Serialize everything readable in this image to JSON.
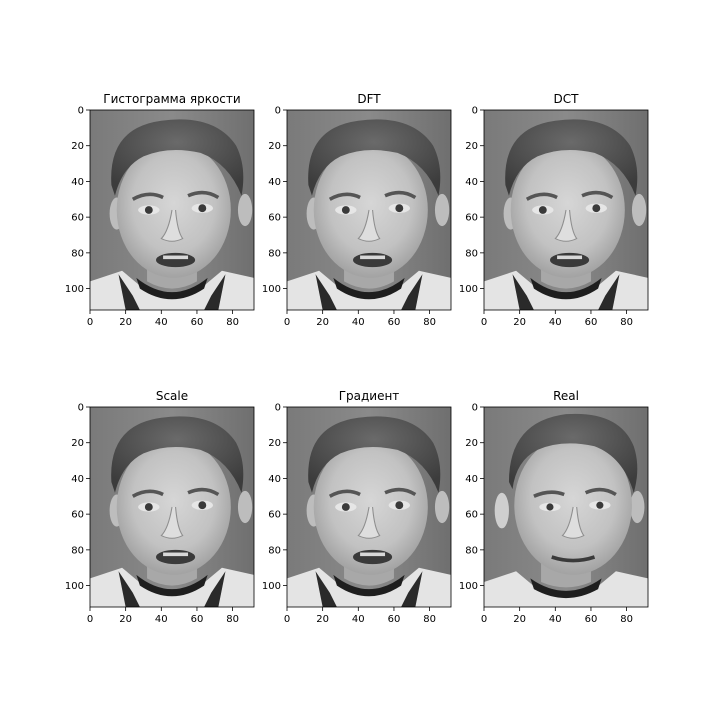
{
  "figure": {
    "background": "#ffffff"
  },
  "chart_data": [
    {
      "type": "image",
      "title": "Гистограмма яркости",
      "content": "grayscale face photo, smiling man, mouth slightly open",
      "xlim": [
        0,
        92
      ],
      "ylim": [
        112,
        0
      ],
      "xticks": [
        0,
        20,
        40,
        60,
        80
      ],
      "yticks": [
        0,
        20,
        40,
        60,
        80,
        100
      ]
    },
    {
      "type": "image",
      "title": "DFT",
      "content": "grayscale face photo, smiling man, mouth slightly open",
      "xlim": [
        0,
        92
      ],
      "ylim": [
        112,
        0
      ],
      "xticks": [
        0,
        20,
        40,
        60,
        80
      ],
      "yticks": [
        0,
        20,
        40,
        60,
        80,
        100
      ]
    },
    {
      "type": "image",
      "title": "DCT",
      "content": "grayscale face photo, smiling man, mouth slightly open",
      "xlim": [
        0,
        92
      ],
      "ylim": [
        112,
        0
      ],
      "xticks": [
        0,
        20,
        40,
        60,
        80
      ],
      "yticks": [
        0,
        20,
        40,
        60,
        80,
        100
      ]
    },
    {
      "type": "image",
      "title": "Scale",
      "content": "grayscale face photo, smiling man, mouth slightly open",
      "xlim": [
        0,
        92
      ],
      "ylim": [
        112,
        0
      ],
      "xticks": [
        0,
        20,
        40,
        60,
        80
      ],
      "yticks": [
        0,
        20,
        40,
        60,
        80,
        100
      ]
    },
    {
      "type": "image",
      "title": "Градиент",
      "content": "grayscale face photo, smiling man, mouth slightly open",
      "xlim": [
        0,
        92
      ],
      "ylim": [
        112,
        0
      ],
      "xticks": [
        0,
        20,
        40,
        60,
        80
      ],
      "yticks": [
        0,
        20,
        40,
        60,
        80,
        100
      ]
    },
    {
      "type": "image",
      "title": "Real",
      "content": "grayscale face photo, same man, closed mouth, slightly different pose",
      "xlim": [
        0,
        92
      ],
      "ylim": [
        112,
        0
      ],
      "xticks": [
        0,
        20,
        40,
        60,
        80
      ],
      "yticks": [
        0,
        20,
        40,
        60,
        80,
        100
      ]
    }
  ]
}
